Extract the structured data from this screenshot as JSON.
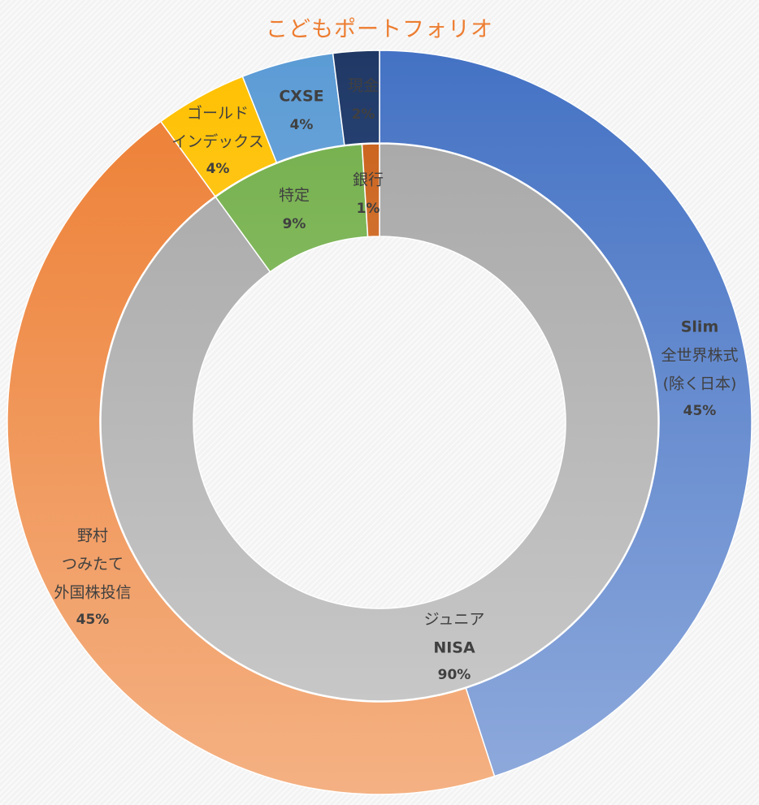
{
  "chart_data": {
    "type": "pie",
    "variant": "double-donut",
    "title": "こどもポートフォリオ",
    "start_angle_deg": 0,
    "direction": "clockwise",
    "rings": [
      {
        "name": "",
        "position": "inner",
        "slices": [
          {
            "key": "junior-nisa",
            "label_lines": [
              "ジュニア",
              "NISA"
            ],
            "value": 90,
            "pct": "90%",
            "color_light": "#cccccc",
            "color_dark": "#a5a5a5"
          },
          {
            "key": "tokutei",
            "label_lines": [
              "特定"
            ],
            "value": 9,
            "pct": "9%",
            "color_light": "#a9d18e",
            "color_dark": "#70ad47"
          },
          {
            "key": "ginko",
            "label_lines": [
              "銀行"
            ],
            "value": 1,
            "pct": "1%",
            "color_light": "#f4b183",
            "color_dark": "#c55a11"
          }
        ]
      },
      {
        "name": "",
        "position": "outer",
        "slices": [
          {
            "key": "slim",
            "label_lines": [
              "Slim",
              "全世界株式",
              "(除く日本)"
            ],
            "value": 45,
            "pct": "45%",
            "color_light": "#8faadc",
            "color_dark": "#4472c4"
          },
          {
            "key": "nomura",
            "label_lines": [
              "野村",
              "つみたて",
              "外国株投信"
            ],
            "value": 45,
            "pct": "45%",
            "color_light": "#f4b183",
            "color_dark": "#ed7d31"
          },
          {
            "key": "gold",
            "label_lines": [
              "ゴールド",
              "インデックス"
            ],
            "value": 4,
            "pct": "4%",
            "color_light": "#ffd966",
            "color_dark": "#ffc000"
          },
          {
            "key": "cxse",
            "label_lines": [
              "CXSE"
            ],
            "value": 4,
            "pct": "4%",
            "color_light": "#9dc3e6",
            "color_dark": "#5b9bd5"
          },
          {
            "key": "cash",
            "label_lines": [
              "現金"
            ],
            "value": 2,
            "pct": "2%",
            "color_light": "#4472c4",
            "color_dark": "#203864"
          }
        ]
      }
    ]
  }
}
